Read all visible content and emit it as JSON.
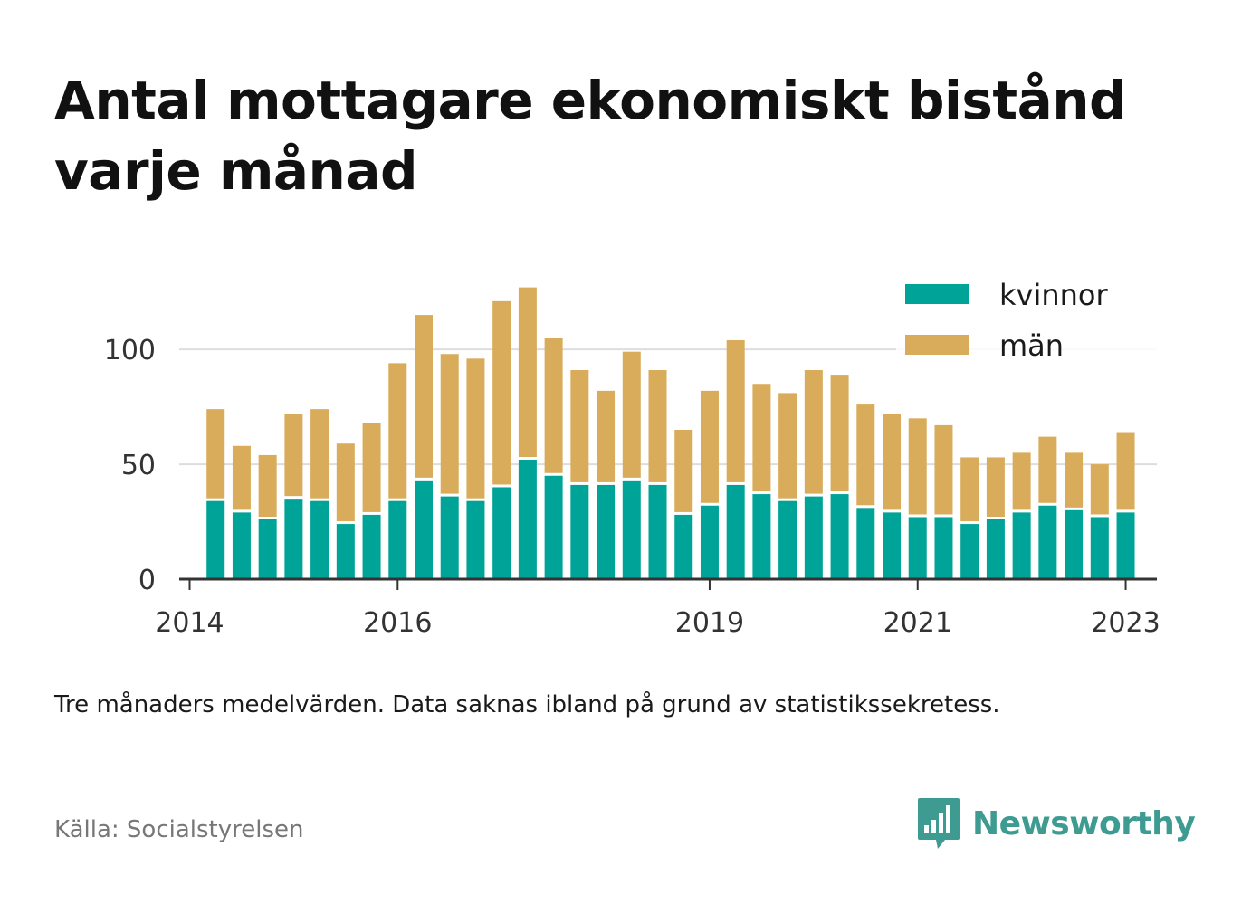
{
  "title": "Antal mottagare ekonomiskt bistånd varje månad",
  "note": "Tre månaders medelvärden. Data saknas ibland på grund av statistikssekretess.",
  "source": "Källa: Socialstyrelsen",
  "brand": {
    "name": "Newsworthy",
    "color": "#3d9b91",
    "icon": "bar-chart-speech-bubble-icon"
  },
  "colors": {
    "kvinnor": "#00a397",
    "man": "#d9ac5b",
    "grid": "#dddddd",
    "axis": "#333333"
  },
  "chart_data": {
    "type": "bar",
    "stacked": true,
    "xlabel": "",
    "ylabel": "",
    "ylim": [
      0,
      130
    ],
    "yticks": [
      0,
      50,
      100
    ],
    "xlim": [
      2013.9,
      2023.3
    ],
    "xticks": [
      "2014",
      "2016",
      "2019",
      "2021",
      "2023"
    ],
    "legend": {
      "position": "top-right"
    },
    "grid": true,
    "x": [
      2014.25,
      2014.5,
      2014.75,
      2015.0,
      2015.25,
      2015.5,
      2015.75,
      2016.0,
      2016.25,
      2016.5,
      2016.75,
      2017.0,
      2017.25,
      2017.5,
      2017.75,
      2018.0,
      2018.25,
      2018.5,
      2018.75,
      2019.0,
      2019.25,
      2019.5,
      2019.75,
      2020.0,
      2020.25,
      2020.5,
      2020.75,
      2021.0,
      2021.25,
      2021.5,
      2021.75,
      2022.0,
      2022.25,
      2022.5,
      2022.75,
      2023.0
    ],
    "series": [
      {
        "name": "kvinnor",
        "values": [
          34,
          29,
          26,
          35,
          34,
          24,
          28,
          34,
          43,
          36,
          34,
          40,
          52,
          45,
          41,
          41,
          43,
          41,
          28,
          32,
          41,
          37,
          34,
          36,
          37,
          31,
          29,
          27,
          27,
          24,
          26,
          29,
          32,
          30,
          27,
          29
        ]
      },
      {
        "name": "män",
        "values": [
          40,
          29,
          28,
          37,
          40,
          35,
          40,
          60,
          72,
          62,
          62,
          81,
          75,
          60,
          50,
          41,
          56,
          50,
          37,
          50,
          63,
          48,
          47,
          55,
          52,
          45,
          43,
          43,
          40,
          29,
          27,
          26,
          30,
          25,
          23,
          35
        ]
      }
    ]
  }
}
